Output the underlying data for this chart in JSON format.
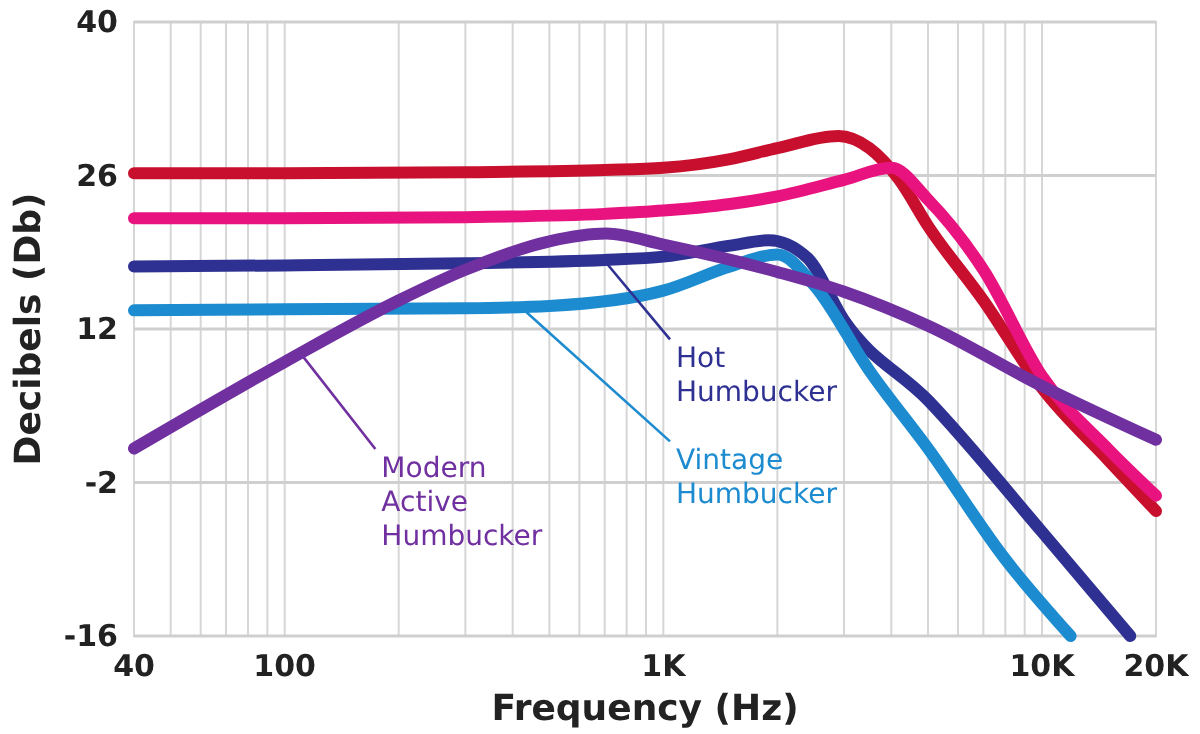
{
  "chart_data": {
    "type": "line",
    "xlabel": "Frequency (Hz)",
    "ylabel": "Decibels (Db)",
    "log": "x",
    "grid": true,
    "line_style": "solid",
    "marker": "none",
    "xlim": [
      40,
      20000
    ],
    "ylim": [
      -16,
      40
    ],
    "xticks": [
      40,
      100,
      {
        "value": 1000,
        "label": "1K"
      },
      {
        "value": 10000,
        "label": "10K"
      },
      {
        "value": 20000,
        "label": "20K"
      }
    ],
    "yticks": [
      -16,
      -2,
      12,
      26,
      40
    ],
    "series": [
      {
        "color": "#c8102e",
        "x": [
          40,
          100,
          300,
          700,
          1000,
          1500,
          2000,
          2900,
          3500,
          4200,
          5000,
          7000,
          10000,
          15000,
          20000
        ],
        "values": [
          26.2,
          26.2,
          26.3,
          26.5,
          26.7,
          27.5,
          28.5,
          29.6,
          28.5,
          25.6,
          21.4,
          14.6,
          6.6,
          0,
          -4.6
        ]
      },
      {
        "color": "#e8137f",
        "x": [
          40,
          100,
          300,
          700,
          1000,
          1500,
          2000,
          3000,
          4000,
          5000,
          7000,
          10000,
          15000,
          20000
        ],
        "values": [
          22.1,
          22.1,
          22.2,
          22.5,
          22.8,
          23.4,
          24.1,
          25.6,
          26.7,
          23.8,
          17.4,
          7.7,
          1,
          -3.2
        ]
      },
      {
        "name": "Hot Humbucker",
        "color": "#2e3192",
        "x": [
          40,
          100,
          300,
          700,
          1000,
          1500,
          1900,
          2400,
          3000,
          5000,
          10000,
          17100
        ],
        "values": [
          17.7,
          17.8,
          18,
          18.3,
          18.6,
          19.6,
          20.1,
          18.5,
          12.8,
          5.5,
          -6.5,
          -16
        ]
      },
      {
        "name": "Vintage Humbucker",
        "color": "#1c8bcf",
        "x": [
          40,
          100,
          300,
          500,
          1000,
          1500,
          2000,
          2500,
          3500,
          5000,
          8000,
          11900
        ],
        "values": [
          13.7,
          13.8,
          13.9,
          14.1,
          15.5,
          17.7,
          18.8,
          16,
          8.2,
          1.1,
          -9,
          -16
        ]
      },
      {
        "name": "Modern Active Humbucker",
        "color": "#7030a0",
        "x": [
          40,
          100,
          200,
          300,
          500,
          706,
          1000,
          2000,
          3000,
          5000,
          10000,
          20000
        ],
        "values": [
          1.1,
          9,
          14.6,
          17.4,
          20,
          20.7,
          19.7,
          17.2,
          15.4,
          12.3,
          6.8,
          1.9
        ]
      }
    ]
  }
}
